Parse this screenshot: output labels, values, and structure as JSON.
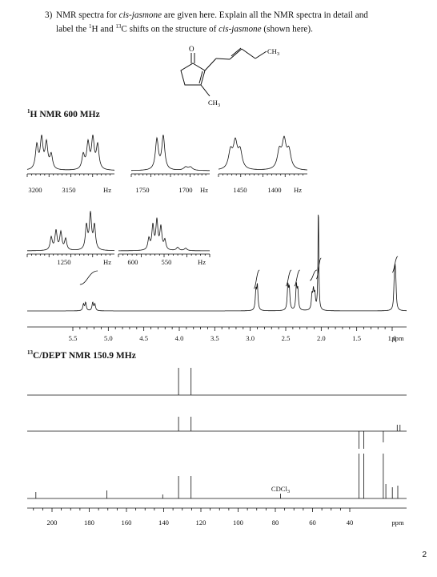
{
  "question": {
    "number": "3)",
    "line1": "NMR spectra for cis-jasmone are given here. Explain all the NMR spectra in detail and",
    "line2": "label the 1H and 13C shifts on the structure of cis-jasmone (shown here)."
  },
  "structure": {
    "o_label": "O",
    "ch3_top": "CH3",
    "ch3_bottom": "CH3"
  },
  "h_nmr": {
    "title": "1H NMR 600 MHz",
    "insets": [
      {
        "ticks": [
          "3200",
          "3150",
          "Hz"
        ]
      },
      {
        "ticks": [
          "1750",
          "1700",
          "Hz"
        ]
      },
      {
        "ticks": [
          "1450",
          "1400",
          "Hz"
        ]
      },
      {
        "ticks": [
          "1250",
          "Hz"
        ]
      },
      {
        "ticks": [
          "600",
          "550",
          "Hz"
        ]
      }
    ],
    "axis_ticks": [
      "5.5",
      "5.0",
      "4.5",
      "4.0",
      "3.5",
      "3.0",
      "2.5",
      "2.0",
      "1.5",
      "1.0"
    ],
    "axis_unit": "ppm"
  },
  "c_nmr": {
    "title": "13C/DEPT NMR 150.9 MHz",
    "solvent_label": "CDCl3",
    "axis_ticks": [
      "200",
      "180",
      "160",
      "140",
      "120",
      "100",
      "80",
      "60",
      "40"
    ],
    "axis_unit": "ppm"
  },
  "page_number": "2"
}
